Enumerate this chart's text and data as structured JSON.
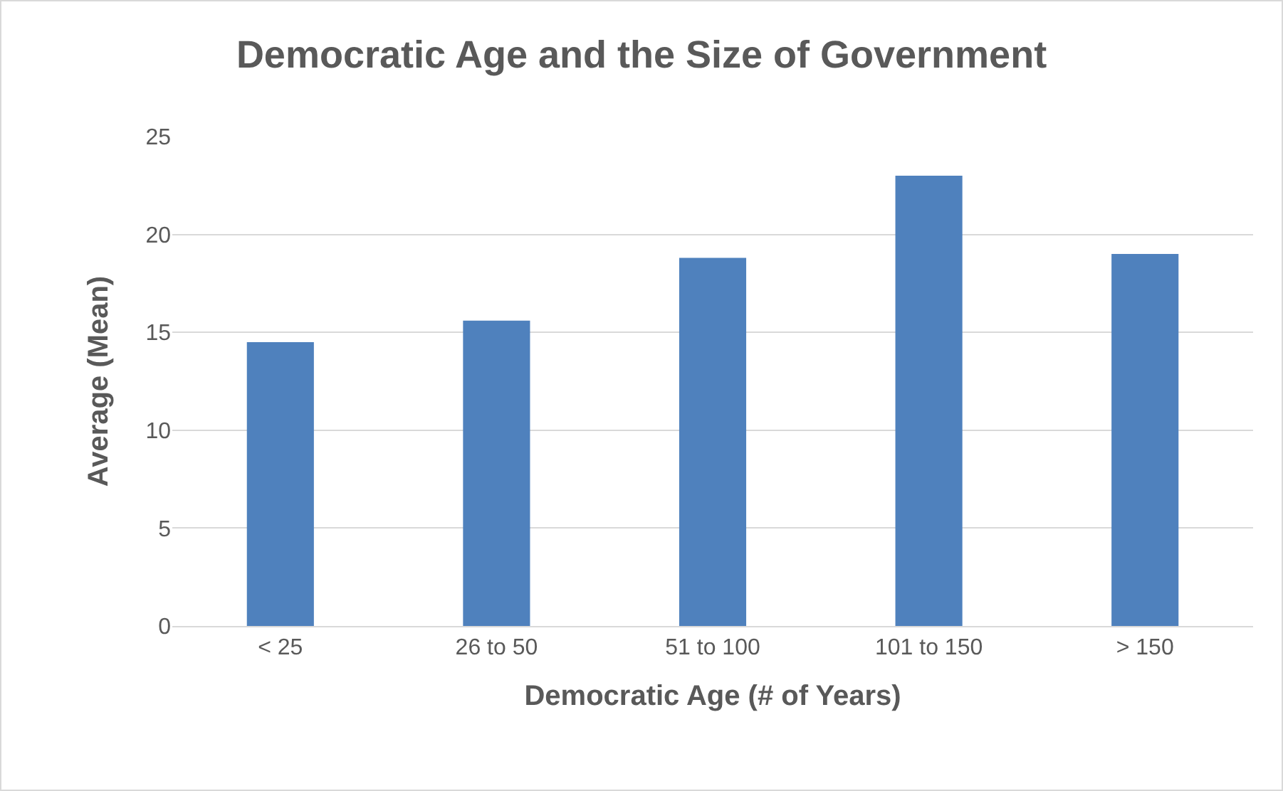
{
  "chart_data": {
    "type": "bar",
    "title": "Democratic Age and the Size of Government",
    "xlabel": "Democratic Age (# of Years)",
    "ylabel": "Average (Mean)",
    "categories": [
      "< 25",
      "26 to 50",
      "51 to 100",
      "101 to 150",
      "> 150"
    ],
    "values": [
      14.5,
      15.6,
      18.8,
      23.0,
      19.0
    ],
    "color": "#4f81bd",
    "ylim": [
      0,
      25
    ],
    "yticks": [
      0,
      5,
      10,
      15,
      20,
      25
    ],
    "grid": "y"
  }
}
